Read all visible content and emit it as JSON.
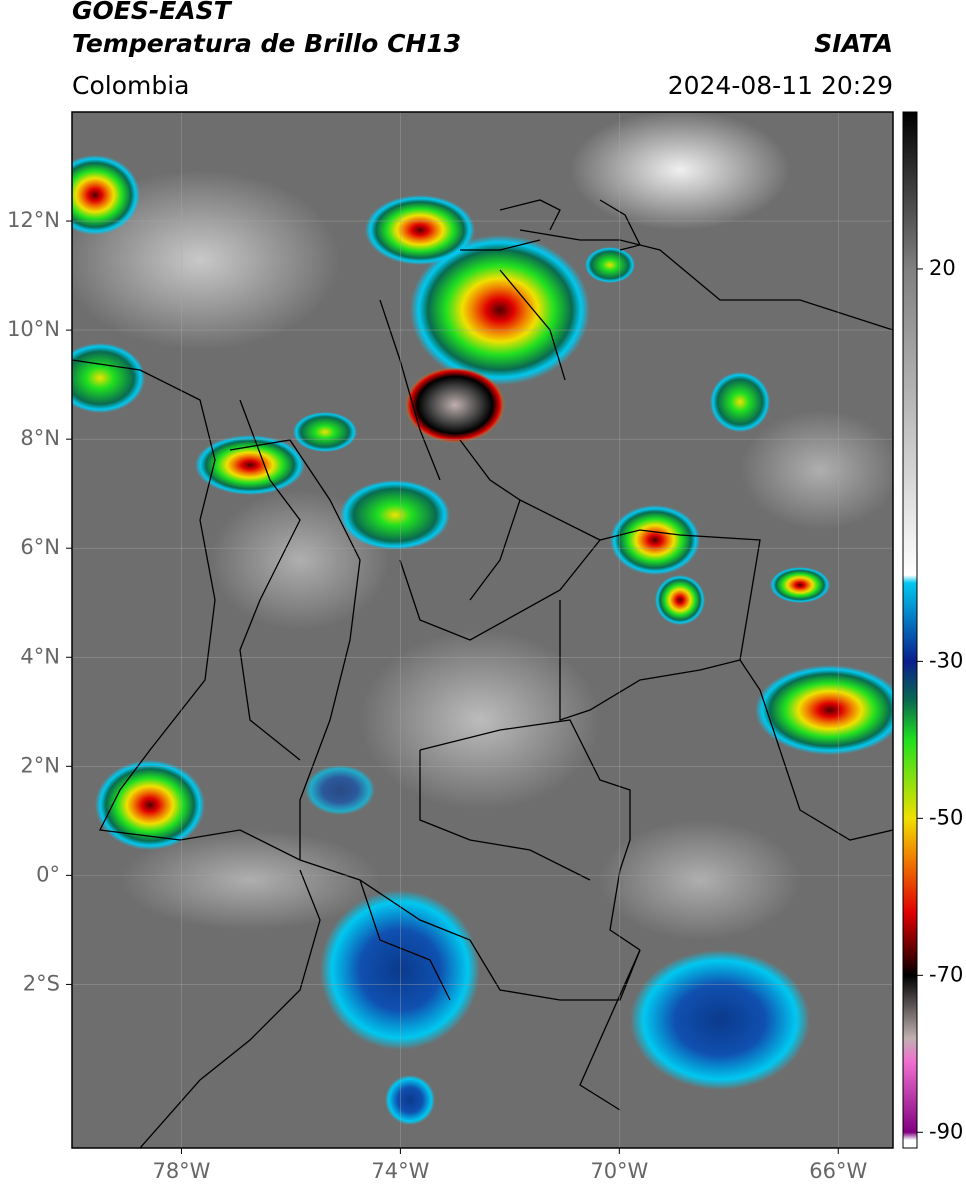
{
  "header": {
    "title": "GOES-EAST",
    "subtitle": "Temperatura de Brillo CH13",
    "region": "Colombia",
    "source": "SIATA",
    "timestamp": "2024-08-11 20:29"
  },
  "map": {
    "xlim": [
      -80,
      -65
    ],
    "ylim": [
      -5,
      14
    ],
    "xticks": [
      {
        "value": -78,
        "label": "78°W"
      },
      {
        "value": -74,
        "label": "74°W"
      },
      {
        "value": -70,
        "label": "70°W"
      },
      {
        "value": -66,
        "label": "66°W"
      }
    ],
    "yticks": [
      {
        "value": 12,
        "label": "12°N"
      },
      {
        "value": 10,
        "label": "10°N"
      },
      {
        "value": 8,
        "label": "8°N"
      },
      {
        "value": 6,
        "label": "6°N"
      },
      {
        "value": 4,
        "label": "4°N"
      },
      {
        "value": 2,
        "label": "2°N"
      },
      {
        "value": 0,
        "label": "0°"
      },
      {
        "value": -2,
        "label": "2°S"
      }
    ],
    "grid": true
  },
  "colorbar": {
    "lim": [
      -92,
      40
    ],
    "ticks": [
      20,
      -30,
      -50,
      -70,
      -90
    ],
    "stops": [
      {
        "value": 40,
        "color": "#000000"
      },
      {
        "value": 20,
        "color": "#808080"
      },
      {
        "value": -19,
        "color": "#ffffff"
      },
      {
        "value": -20,
        "color": "#00c8f0"
      },
      {
        "value": -30,
        "color": "#0a1e8c"
      },
      {
        "value": -35,
        "color": "#0a6a50"
      },
      {
        "value": -40,
        "color": "#20e020"
      },
      {
        "value": -50,
        "color": "#f0e000"
      },
      {
        "value": -55,
        "color": "#f08000"
      },
      {
        "value": -62,
        "color": "#e00000"
      },
      {
        "value": -68,
        "color": "#400000"
      },
      {
        "value": -70,
        "color": "#000000"
      },
      {
        "value": -78,
        "color": "#c0b0b0"
      },
      {
        "value": -81,
        "color": "#f070d0"
      },
      {
        "value": -90,
        "color": "#800080"
      },
      {
        "value": -91,
        "color": "#ffffff"
      }
    ]
  }
}
